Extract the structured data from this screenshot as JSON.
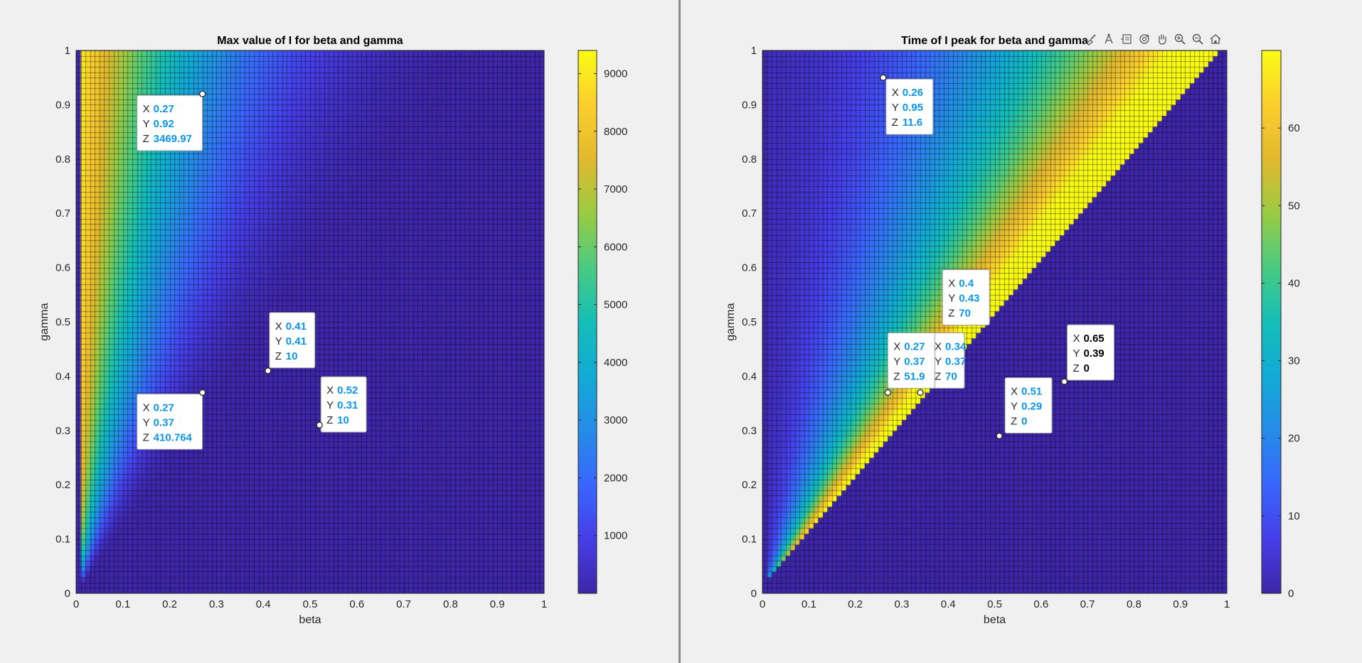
{
  "chart_data": [
    {
      "type": "heatmap",
      "title": "Max value of I for beta and gamma",
      "xlabel": "beta",
      "ylabel": "gamma",
      "xlim": [
        0,
        1
      ],
      "ylim": [
        0,
        1
      ],
      "x_ticks": [
        "0",
        "0.1",
        "0.2",
        "0.3",
        "0.4",
        "0.5",
        "0.6",
        "0.7",
        "0.8",
        "0.9",
        "1"
      ],
      "y_ticks": [
        "0",
        "0.1",
        "0.2",
        "0.3",
        "0.4",
        "0.5",
        "0.6",
        "0.7",
        "0.8",
        "0.9",
        "1"
      ],
      "grid_resolution": 0.01,
      "color_range": [
        0,
        9400
      ],
      "colorbar_ticks": [
        "1000",
        "2000",
        "3000",
        "4000",
        "5000",
        "6000",
        "7000",
        "8000",
        "9000"
      ],
      "colormap": "parula",
      "datatips": [
        {
          "x": 0.27,
          "y": 0.92,
          "z": "3469.97"
        },
        {
          "x": 0.41,
          "y": 0.41,
          "z": "10"
        },
        {
          "x": 0.52,
          "y": 0.31,
          "z": "10"
        },
        {
          "x": 0.27,
          "y": 0.37,
          "z": "410.764"
        }
      ]
    },
    {
      "type": "heatmap",
      "title": "Time of I peak for beta and gamma",
      "xlabel": "beta",
      "ylabel": "gamma",
      "xlim": [
        0,
        1
      ],
      "ylim": [
        0,
        1
      ],
      "x_ticks": [
        "0",
        "0.1",
        "0.2",
        "0.3",
        "0.4",
        "0.5",
        "0.6",
        "0.7",
        "0.8",
        "0.9",
        "1"
      ],
      "y_ticks": [
        "0",
        "0.1",
        "0.2",
        "0.3",
        "0.4",
        "0.5",
        "0.6",
        "0.7",
        "0.8",
        "0.9",
        "1"
      ],
      "grid_resolution": 0.01,
      "color_range": [
        0,
        70
      ],
      "colorbar_ticks": [
        "0",
        "10",
        "20",
        "30",
        "40",
        "50",
        "60"
      ],
      "colormap": "parula",
      "datatips": [
        {
          "x": 0.26,
          "y": 0.95,
          "z": "11.6"
        },
        {
          "x": 0.4,
          "y": 0.43,
          "z": "70"
        },
        {
          "x": 0.34,
          "y": 0.37,
          "z": "70"
        },
        {
          "x": 0.27,
          "y": 0.37,
          "z": "51.9"
        },
        {
          "x": 0.51,
          "y": 0.29,
          "z": "0"
        },
        {
          "x": 0.65,
          "y": 0.39,
          "z": "0"
        }
      ]
    }
  ],
  "colors": {
    "datatip_value": "#0b94e8",
    "datatip_selected_value": "#000000",
    "background": "#f0f0f0"
  },
  "axes_toolbar": {
    "icons": [
      "brush-icon",
      "data-tips-icon",
      "restore-view-icon",
      "rotate-icon",
      "pan-icon",
      "zoom-in-icon",
      "zoom-out-icon",
      "home-icon"
    ]
  }
}
